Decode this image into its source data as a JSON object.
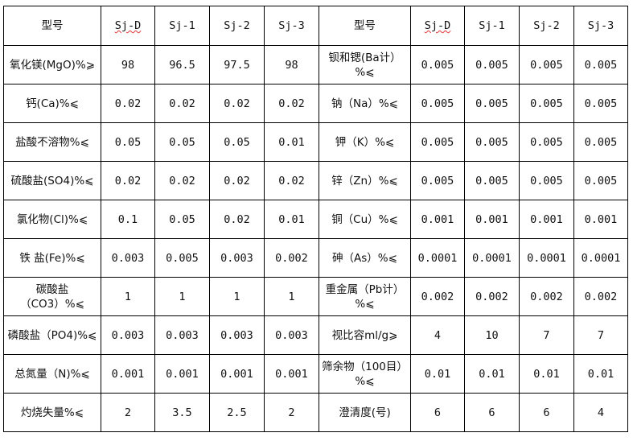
{
  "header": {
    "left_label": "型号",
    "right_label": "型号",
    "models": [
      "Sj-D",
      "Sj-1",
      "Sj-2",
      "Sj-3"
    ]
  },
  "rows": [
    {
      "left": "氧化镁(MgO)%⩾",
      "lv": [
        "98",
        "96.5",
        "97.5",
        "98"
      ],
      "right": "钡和锶(Ba计）%⩽",
      "rv": [
        "0.005",
        "0.005",
        "0.005",
        "0.005"
      ]
    },
    {
      "left": "钙(Ca)%⩽",
      "lv": [
        "0.02",
        "0.02",
        "0.02",
        "0.02"
      ],
      "right": "钠（Na）%⩽",
      "rv": [
        "0.005",
        "0.005",
        "0.005",
        "0.005"
      ]
    },
    {
      "left": "盐酸不溶物%⩽",
      "lv": [
        "0.05",
        "0.05",
        "0.05",
        "0.01"
      ],
      "right": "钾（K）%⩽",
      "rv": [
        "0.005",
        "0.005",
        "0.005",
        "0.005"
      ]
    },
    {
      "left": "硫酸盐(SO4)%⩽",
      "lv": [
        "0.02",
        "0.02",
        "0.02",
        "0.02"
      ],
      "right": "锌（Zn）%⩽",
      "rv": [
        "0.005",
        "0.005",
        "0.005",
        "0.005"
      ]
    },
    {
      "left": "氯化物(Cl)%⩽",
      "lv": [
        "0.1",
        "0.05",
        "0.02",
        "0.01"
      ],
      "right": "铜（Cu）%⩽",
      "rv": [
        "0.001",
        "0.001",
        "0.001",
        "0.001"
      ]
    },
    {
      "left": "铁 盐(Fe)%⩽",
      "lv": [
        "0.003",
        "0.005",
        "0.003",
        "0.002"
      ],
      "right": "砷（As）%⩽",
      "rv": [
        "0.0001",
        "0.0001",
        "0.0001",
        "0.0001"
      ]
    },
    {
      "left": "碳酸盐（CO3）%⩽",
      "lv": [
        "1",
        "1",
        "1",
        "1"
      ],
      "right": "重金属（Pb计）%⩽",
      "rv": [
        "0.002",
        "0.002",
        "0.002",
        "0.002"
      ]
    },
    {
      "left": "磷酸盐（PO4)%⩽",
      "lv": [
        "0.003",
        "0.003",
        "0.003",
        "0.003"
      ],
      "right": "视比容ml/g⩾",
      "rv": [
        "4",
        "10",
        "7",
        "7"
      ]
    },
    {
      "left": "总氮量（N)%⩽",
      "lv": [
        "0.001",
        "0.001",
        "0.001",
        "0.001"
      ],
      "right": "筛余物（100目）%⩽",
      "rv": [
        "0.01",
        "0.01",
        "0.01",
        "0.01"
      ]
    },
    {
      "left": "灼烧失量%⩽",
      "lv": [
        "2",
        "3.5",
        "2.5",
        "2"
      ],
      "right": "澄清度(号)",
      "rv": [
        "6",
        "6",
        "6",
        "4"
      ]
    }
  ]
}
